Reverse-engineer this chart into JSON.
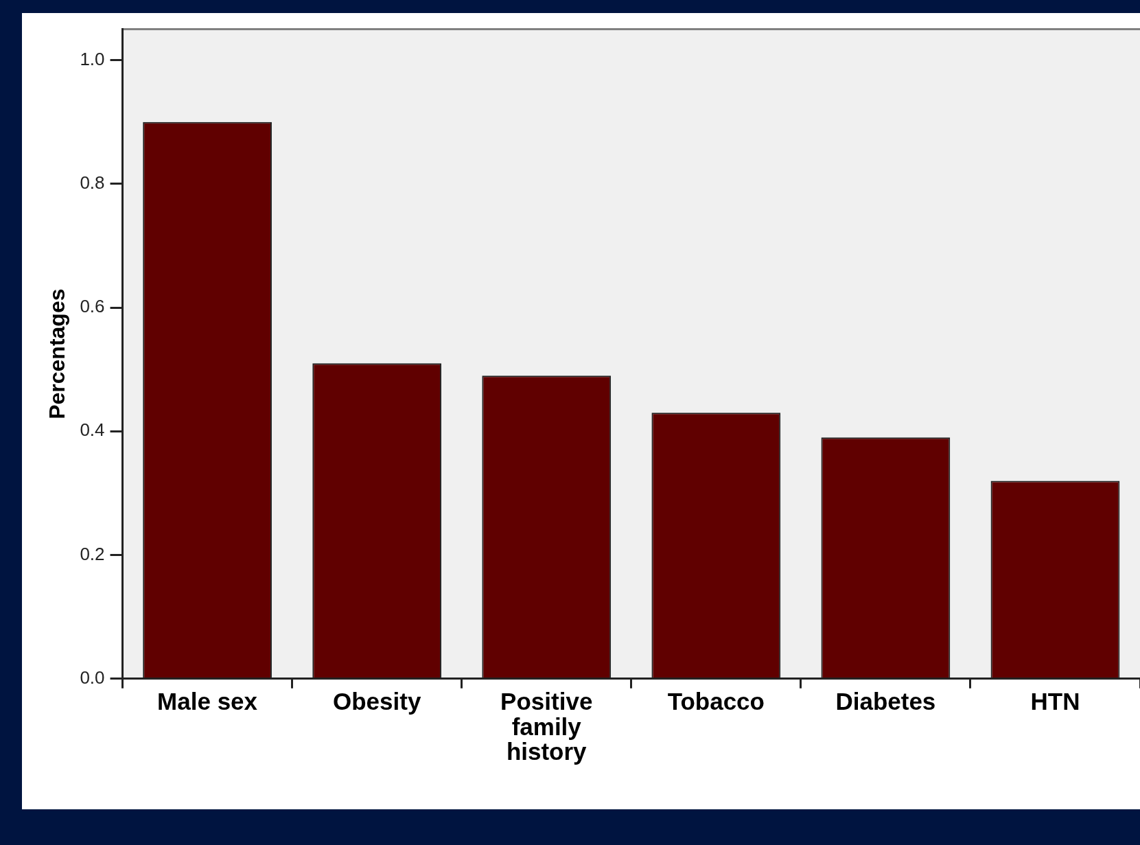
{
  "chart_data": {
    "type": "bar",
    "ylabel": "Percentages",
    "categories": [
      "Male sex",
      "Obesity",
      "Positive family history",
      "Tobacco",
      "Diabetes",
      "HTN"
    ],
    "values": [
      0.9,
      0.51,
      0.49,
      0.43,
      0.39,
      0.32
    ],
    "color": "#600000",
    "ylim": [
      0,
      1.05
    ],
    "yticks": [
      {
        "value": 0,
        "label": "0.0"
      },
      0.2,
      0.4,
      0.6,
      0.8,
      {
        "value": 1,
        "label": "1.0"
      }
    ],
    "grid": false,
    "legend": false
  }
}
